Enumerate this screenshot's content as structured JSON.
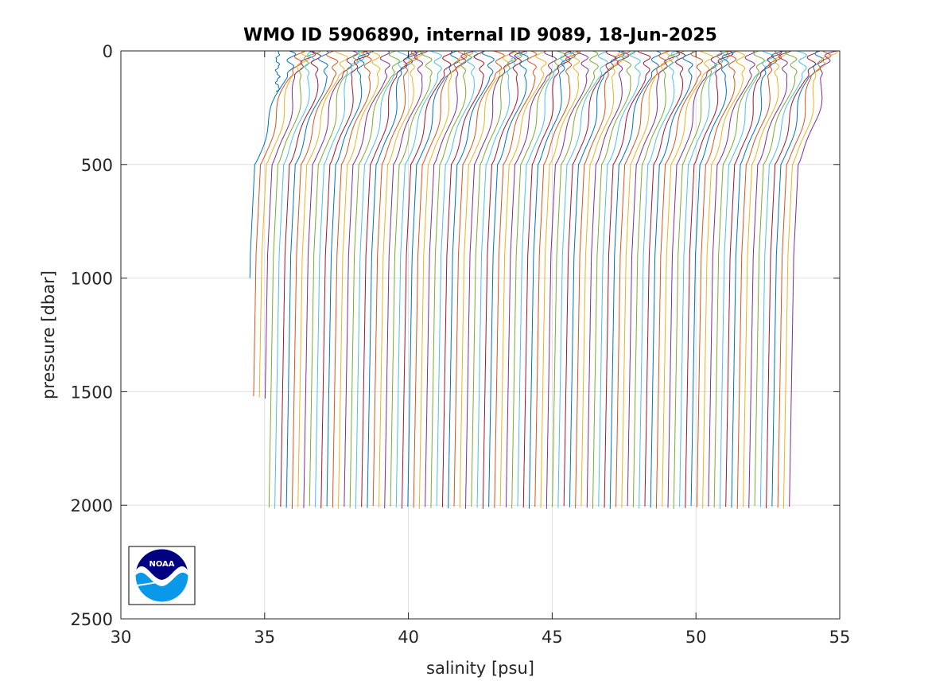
{
  "chart_data": {
    "type": "line",
    "title": "WMO ID 5906890, internal ID 9089, 18-Jun-2025",
    "xlabel": "salinity [psu]",
    "ylabel": "pressure [dbar]",
    "xlim": [
      30,
      55
    ],
    "ylim": [
      0,
      2500
    ],
    "y_reversed": true,
    "grid": true,
    "xticks": [
      "30",
      "35",
      "40",
      "45",
      "50",
      "55"
    ],
    "yticks": [
      "0",
      "500",
      "1000",
      "1500",
      "2000",
      "2500"
    ],
    "colors": [
      "#0072bd",
      "#d95319",
      "#edb120",
      "#7e2f8e",
      "#77ac30",
      "#4dbeee",
      "#a2142f"
    ],
    "profile_count": 95,
    "deep_salinity_start": 34.5,
    "deep_salinity_end": 53.4,
    "deep_offset_step": 0.2,
    "max_pressure": 2010,
    "logo": "NOAA"
  }
}
